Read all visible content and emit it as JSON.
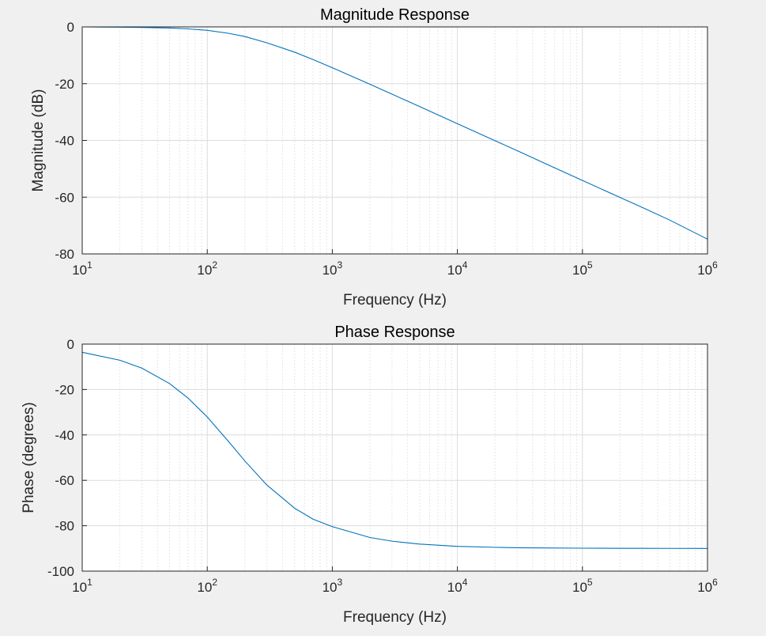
{
  "chart_data": [
    {
      "type": "line",
      "title": "Magnitude Response",
      "xlabel": "Frequency (Hz)",
      "ylabel": "Magnitude (dB)",
      "x_scale": "log",
      "xlim": [
        10,
        1000000
      ],
      "ylim": [
        -80,
        0
      ],
      "grid": true,
      "x_ticks": [
        {
          "base": "10",
          "exp": "1"
        },
        {
          "base": "10",
          "exp": "2"
        },
        {
          "base": "10",
          "exp": "3"
        },
        {
          "base": "10",
          "exp": "4"
        },
        {
          "base": "10",
          "exp": "5"
        },
        {
          "base": "10",
          "exp": "6"
        }
      ],
      "y_ticks": [
        "0",
        "-20",
        "-40",
        "-60",
        "-80"
      ],
      "series": [
        {
          "color": "#0072bd",
          "x": [
            10,
            20,
            30,
            50,
            70,
            100,
            150,
            200,
            300,
            500,
            700,
            1000,
            2000,
            3000,
            5000,
            10000,
            20000,
            30000,
            50000,
            100000,
            200000,
            300000,
            500000,
            1000000
          ],
          "values": [
            0,
            -0.1,
            -0.2,
            -0.4,
            -0.7,
            -1.2,
            -2.3,
            -3.4,
            -5.6,
            -8.9,
            -11.5,
            -14.4,
            -20.2,
            -23.7,
            -28.1,
            -34.1,
            -40.1,
            -43.6,
            -48.1,
            -54.1,
            -60.1,
            -63.6,
            -68.1,
            -74.8
          ]
        }
      ]
    },
    {
      "type": "line",
      "title": "Phase Response",
      "xlabel": "Frequency (Hz)",
      "ylabel": "Phase (degrees)",
      "x_scale": "log",
      "xlim": [
        10,
        1000000
      ],
      "ylim": [
        -100,
        0
      ],
      "grid": true,
      "x_ticks": [
        {
          "base": "10",
          "exp": "1"
        },
        {
          "base": "10",
          "exp": "2"
        },
        {
          "base": "10",
          "exp": "3"
        },
        {
          "base": "10",
          "exp": "4"
        },
        {
          "base": "10",
          "exp": "5"
        },
        {
          "base": "10",
          "exp": "6"
        }
      ],
      "y_ticks": [
        "0",
        "-20",
        "-40",
        "-60",
        "-80",
        "-100"
      ],
      "series": [
        {
          "color": "#0072bd",
          "x": [
            10,
            20,
            30,
            50,
            70,
            100,
            150,
            200,
            300,
            500,
            700,
            1000,
            2000,
            3000,
            5000,
            10000,
            20000,
            30000,
            50000,
            100000,
            200000,
            300000,
            500000,
            1000000
          ],
          "values": [
            -3.6,
            -7.1,
            -10.6,
            -17.4,
            -23.7,
            -32.1,
            -43.3,
            -51.5,
            -62.1,
            -72.3,
            -77.1,
            -80.4,
            -85.2,
            -86.8,
            -88.1,
            -89.1,
            -89.5,
            -89.7,
            -89.8,
            -89.9,
            -89.95,
            -89.97,
            -89.98,
            -89.99
          ]
        }
      ]
    }
  ]
}
